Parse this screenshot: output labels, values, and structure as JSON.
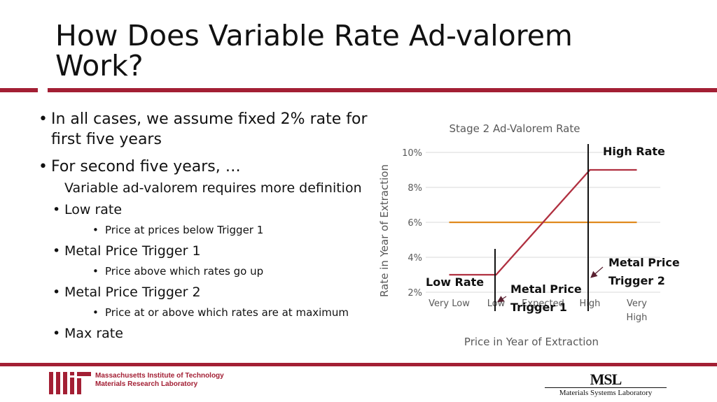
{
  "slide": {
    "title": "How Does Variable Rate Ad-valorem Work?",
    "accent_color": "#a31f34"
  },
  "bullets": {
    "b1": "In all cases, we assume fixed 2% rate for first five years",
    "b2": "For second five years, …",
    "b2_text": "Variable ad-valorem requires more definition",
    "low_rate": "Low rate",
    "low_rate_sub": "Price at prices below Trigger 1",
    "trigger1": "Metal Price Trigger 1",
    "trigger1_sub": "Price above which rates go up",
    "trigger2": "Metal Price Trigger 2",
    "trigger2_sub": "Price at or above which rates are at maximum",
    "max_rate": "Max rate"
  },
  "chart_data": {
    "type": "line",
    "title": "Stage 2 Ad-Valorem Rate",
    "xlabel": "Price in Year of Extraction",
    "ylabel": "Rate in Year of Extraction",
    "categories": [
      "Very Low",
      "Low",
      "Expected",
      "High",
      "Very High"
    ],
    "yticks": [
      "2%",
      "4%",
      "6%",
      "8%",
      "10%"
    ],
    "ylim": [
      2,
      10
    ],
    "grid": true,
    "series": [
      {
        "color": "#e08a1e",
        "x": [
          0,
          4
        ],
        "values": [
          6,
          6
        ]
      },
      {
        "color": "#b03040",
        "x": [
          0,
          1,
          3,
          4
        ],
        "values": [
          3,
          3,
          9,
          9
        ]
      }
    ],
    "annotations": {
      "high_rate": "High Rate",
      "low_rate": "Low Rate",
      "trigger1_line1": "Metal Price",
      "trigger1_line2": "Trigger 1",
      "trigger2_line1": "Metal Price",
      "trigger2_line2": "Trigger 2"
    }
  },
  "footer": {
    "mit_line1": "Massachusetts Institute of Technology",
    "mit_line2": "Materials Research Laboratory",
    "msl_mark": "MSL",
    "msl_name": "Materials Systems Laboratory"
  }
}
